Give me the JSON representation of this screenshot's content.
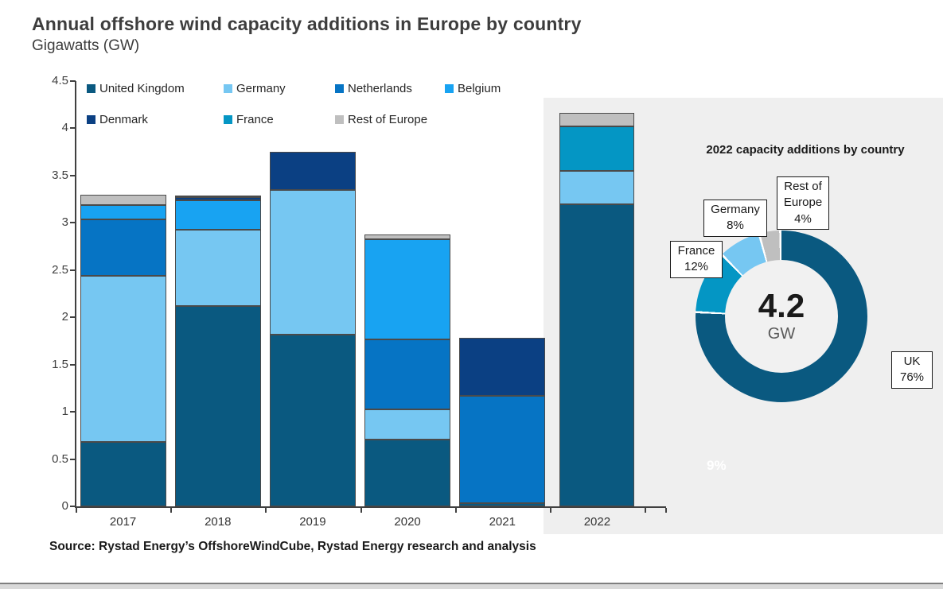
{
  "header": {
    "title": "Annual offshore wind capacity additions in Europe by country",
    "subtitle": "Gigawatts (GW)"
  },
  "source_line": "Source: Rystad Energy’s OffshoreWindCube, Rystad Energy research and analysis",
  "chart_data": [
    {
      "type": "bar",
      "stacked": true,
      "title": "",
      "xlabel": "",
      "ylabel": "Gigawatts (GW)",
      "ylim": [
        0,
        4.5
      ],
      "ytick_labels": [
        "0",
        "0.5",
        "1",
        "1.5",
        "2",
        "2.5",
        "3",
        "3.5",
        "4",
        "4.5"
      ],
      "grid": false,
      "legend_position": "top-left, two rows",
      "categories": [
        "2017",
        "2018",
        "2019",
        "2020",
        "2021",
        "2022"
      ],
      "highlighted_category": "2022",
      "series": [
        {
          "name": "United Kingdom",
          "color": "#0A5980",
          "values": [
            0.68,
            2.12,
            1.82,
            0.71,
            0.03,
            3.2
          ]
        },
        {
          "name": "Germany",
          "color": "#76C7F2",
          "values": [
            1.76,
            0.81,
            1.53,
            0.32,
            0,
            0.35
          ]
        },
        {
          "name": "Netherlands",
          "color": "#0674C4",
          "values": [
            0.6,
            0,
            0,
            0.74,
            1.14,
            0
          ]
        },
        {
          "name": "Belgium",
          "color": "#18A3F2",
          "values": [
            0.15,
            0.31,
            0,
            1.06,
            0,
            0
          ]
        },
        {
          "name": "Denmark",
          "color": "#0B4083",
          "values": [
            0,
            0.03,
            0.4,
            0,
            0.61,
            0
          ]
        },
        {
          "name": "France",
          "color": "#0496C4",
          "values": [
            0,
            0,
            0,
            0,
            0,
            0.47
          ]
        },
        {
          "name": "Rest of Europe",
          "color": "#BFBFBF",
          "values": [
            0.11,
            0.02,
            0,
            0.05,
            0,
            0.14
          ]
        }
      ]
    },
    {
      "type": "pie",
      "donut": true,
      "title": "2022 capacity additions by country",
      "center_value": "4.2",
      "center_unit": "GW",
      "slices": [
        {
          "label": "UK",
          "pct": 76,
          "color": "#0A5980"
        },
        {
          "label": "France",
          "pct": 12,
          "color": "#0496C4"
        },
        {
          "label": "Germany",
          "pct": 8,
          "color": "#76C7F2"
        },
        {
          "label": "Rest of Europe",
          "pct": 4,
          "color": "#BFBFBF"
        }
      ],
      "callouts": {
        "germany": {
          "name": "Germany",
          "pct": "8%"
        },
        "roe": {
          "name": "Rest of Europe",
          "pct": "4%"
        },
        "france": {
          "name": "France",
          "pct": "12%"
        },
        "uk": {
          "name": "UK",
          "pct": "76%"
        }
      },
      "stray_label": "9%"
    }
  ],
  "colors": {
    "panel_background": "#EFEFEF",
    "axis": "#404040",
    "title_text": "#3D3D3D",
    "bottom_rule": "#7F7F7F",
    "bottom_strip": "#D9D9D9"
  }
}
